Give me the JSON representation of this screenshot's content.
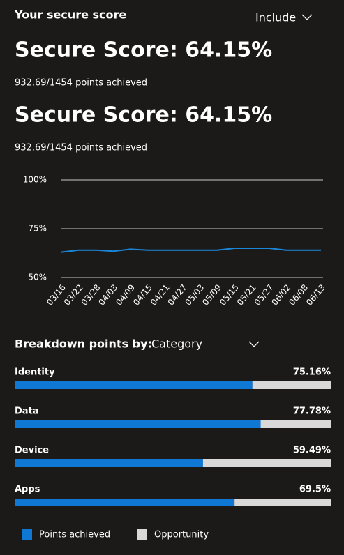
{
  "header": {
    "title": "Your secure score",
    "filter": "Include"
  },
  "scores": [
    {
      "headline": "Secure Score: 64.15%",
      "points": "932.69/1454 points achieved"
    },
    {
      "headline": "Secure Score: 64.15%",
      "points": "932.69/1454 points achieved"
    }
  ],
  "breakdown": {
    "label": "Breakdown points by:",
    "selected": "Category"
  },
  "chart_data": [
    {
      "type": "line",
      "categories": [
        "03/16",
        "03/22",
        "03/28",
        "04/03",
        "04/09",
        "04/15",
        "04/21",
        "04/27",
        "05/03",
        "05/09",
        "05/15",
        "05/21",
        "05/27",
        "06/02",
        "06/08",
        "06/13"
      ],
      "values": [
        63,
        64,
        64,
        63.5,
        64.5,
        64,
        64,
        64,
        64,
        64,
        65,
        65,
        65,
        64,
        64,
        64
      ],
      "color": "#1a86d8",
      "ylim": [
        50,
        100
      ],
      "yticks": [
        {
          "value": 50,
          "label": "50%"
        },
        {
          "value": 75,
          "label": "75%"
        },
        {
          "value": 100,
          "label": "100%"
        }
      ],
      "grid": true
    },
    {
      "type": "stacked_bar_horizontal",
      "categories": [
        "Identity",
        "Data",
        "Device",
        "Apps"
      ],
      "xlim": [
        0,
        100
      ],
      "series": [
        {
          "name": "Points achieved",
          "color": "#0f78d4",
          "values": [
            75.16,
            77.78,
            59.49,
            69.5
          ],
          "value_labels": [
            "75.16%",
            "77.78%",
            "59.49%",
            "69.5%"
          ]
        },
        {
          "name": "Opportunity",
          "color": "#d9d9d9",
          "values": [
            24.84,
            22.22,
            40.51,
            30.5
          ]
        }
      ]
    }
  ]
}
